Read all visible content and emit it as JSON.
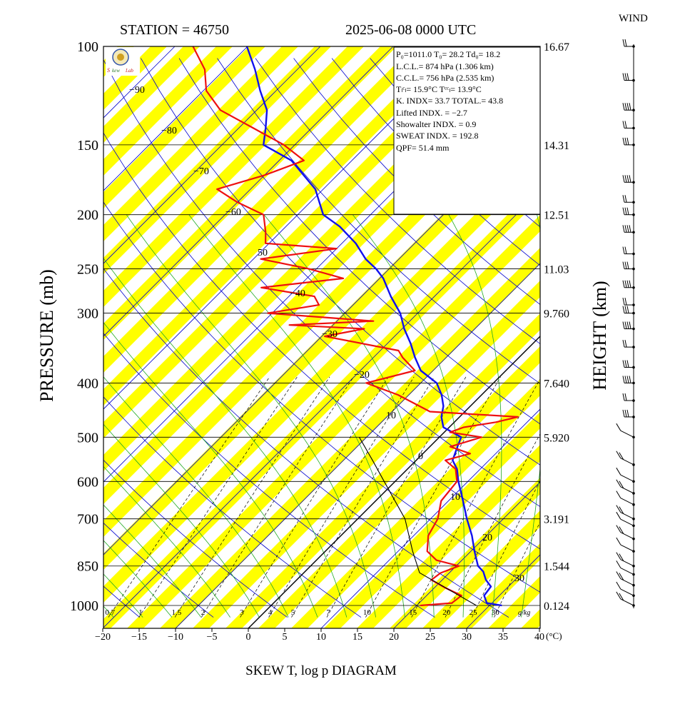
{
  "header": {
    "station": "STATION = 46750",
    "datetime": "2025-06-08 0000 UTC",
    "wind_label": "WIND"
  },
  "footer": {
    "title": "SKEW T, log p DIAGRAM"
  },
  "axes": {
    "ylabel_left": "PRESSURE (mb)",
    "ylabel_right": "HEIGHT (km)",
    "temp_unit": "(°C)",
    "mix_unit": "g/kg",
    "pressure_ticks": [
      "100",
      "150",
      "200",
      "250",
      "300",
      "400",
      "500",
      "600",
      "700",
      "850",
      "1000"
    ],
    "height_labels": [
      "16.67",
      "14.31",
      "12.51",
      "11.03",
      "9.760",
      "7.640",
      "5.920",
      "3.191",
      "1.544",
      "0.124"
    ],
    "temp_ticks": [
      "−20",
      "−15",
      "−10",
      "−5",
      "0",
      "5",
      "10",
      "15",
      "20",
      "25",
      "30",
      "35",
      "40"
    ],
    "mix_labels": [
      "0.7",
      "1",
      "1.5",
      "2",
      "3",
      "4",
      "5",
      "7",
      "10",
      "15",
      "20",
      "25",
      "30"
    ],
    "isotherm_labels": [
      "−90",
      "−80",
      "−70",
      "−60",
      "50",
      "−40",
      "−30",
      "−20",
      "10",
      "0",
      "10",
      "20",
      "30"
    ]
  },
  "indices": [
    "P₀=1011.0  T₀= 28.2  Td₀= 18.2",
    "L.C.L.= 874 hPa (1.306 km)",
    "C.C.L.= 756 hPa (2.535 km)",
    "Tₗᶜₗ= 15.9°C  Tᶜᶜₗ= 13.9°C",
    "K. INDX= 33.7   TOTAL.= 43.8",
    "Lifted INDX. =   −2.7",
    "Showalter INDX. =      0.9",
    "SWEAT INDX. =   192.8",
    "QPF= 51.4 mm"
  ],
  "colors": {
    "temperature": "#1010ee",
    "dewpoint": "#ee1010",
    "yellow_band": "#ffff00",
    "isotherm": "#0000cc",
    "mixing_ratio": "#22aa22"
  },
  "chart_data": {
    "type": "line",
    "title": "SKEW T, log p DIAGRAM",
    "xlabel": "(°C)",
    "ylabel": "PRESSURE (mb)",
    "y_scale": "log",
    "ylim": [
      1000,
      100
    ],
    "xlim": [
      -20,
      40
    ],
    "series": [
      {
        "name": "temperature",
        "p": [
          1000,
          990,
          960,
          925,
          900,
          870,
          850,
          800,
          750,
          700,
          650,
          600,
          570,
          550,
          520,
          500,
          480,
          460,
          440,
          420,
          400,
          380,
          360,
          340,
          320,
          300,
          280,
          260,
          250,
          240,
          225,
          210,
          200,
          180,
          160,
          150,
          140,
          130,
          120,
          110,
          100
        ],
        "t": [
          31.7,
          29.3,
          27.9,
          27.6,
          26.0,
          24.5,
          23.0,
          20.5,
          18.0,
          15.0,
          12.0,
          8.7,
          6.8,
          5.0,
          3.8,
          3.0,
          -0.8,
          -2.5,
          -3.7,
          -5.5,
          -7.8,
          -11.7,
          -14.3,
          -16.8,
          -19.7,
          -22.4,
          -26.0,
          -29.5,
          -31.8,
          -34.6,
          -38.1,
          -42.6,
          -46.5,
          -51.1,
          -58.3,
          -64.3,
          -66.3,
          -68.6,
          -72.2,
          -75.8,
          -80.1
        ]
      },
      {
        "name": "dewpoint",
        "p": [
          1000,
          990,
          960,
          930,
          900,
          875,
          850,
          830,
          800,
          750,
          700,
          650,
          600,
          570,
          550,
          535,
          520,
          500,
          490,
          480,
          470,
          460,
          450,
          420,
          400,
          380,
          360,
          350,
          330,
          320,
          315,
          310,
          300,
          290,
          280,
          270,
          260,
          250,
          240,
          230,
          225,
          215,
          200,
          190,
          180,
          170,
          160,
          150,
          140,
          130,
          120,
          110,
          100
        ],
        "t": [
          20.5,
          24.5,
          24.8,
          21.5,
          18.5,
          18.8,
          20.4,
          16.5,
          14.0,
          12.0,
          11.0,
          9.0,
          8.5,
          6.6,
          4.0,
          6.5,
          2.8,
          5.8,
          0.8,
          2.0,
          5.7,
          8.0,
          -4.8,
          -11.5,
          -17.5,
          -12.5,
          -16.0,
          -17.5,
          -29.6,
          -25.2,
          -36.0,
          -25.0,
          -40.6,
          -34.7,
          -36.5,
          -45.0,
          -35.0,
          -41.0,
          -49.0,
          -40.0,
          -50.5,
          -52.0,
          -54.7,
          -60.0,
          -64.6,
          -60.0,
          -56.6,
          -61.5,
          -68.0,
          -75.0,
          -79.6,
          -82.7,
          -87.5
        ]
      },
      {
        "name": "parcel",
        "p": [
          1000,
          874,
          800,
          700,
          600,
          550,
          500
        ],
        "t": [
          28.2,
          15.9,
          12.0,
          6.5,
          -1.5,
          -6.0,
          -11.0
        ]
      }
    ]
  }
}
